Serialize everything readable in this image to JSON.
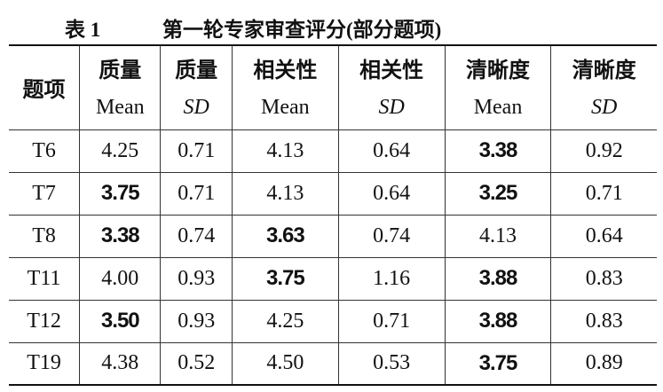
{
  "caption": {
    "label": "表 1",
    "title": "第一轮专家审查评分(部分题项)"
  },
  "table": {
    "header": [
      {
        "name": "题项"
      },
      {
        "name": "质量",
        "stat": "Mean"
      },
      {
        "name": "质量",
        "stat": "SD"
      },
      {
        "name": "相关性",
        "stat": "Mean"
      },
      {
        "name": "相关性",
        "stat": "SD"
      },
      {
        "name": "清晰度",
        "stat": "Mean"
      },
      {
        "name": "清晰度",
        "stat": "SD"
      }
    ],
    "rows": [
      [
        "T6",
        "4.25",
        "0.71",
        "4.13",
        "0.64",
        "3.38",
        "0.92"
      ],
      [
        "T7",
        "3.75",
        "0.71",
        "4.13",
        "0.64",
        "3.25",
        "0.71"
      ],
      [
        "T8",
        "3.38",
        "0.74",
        "3.63",
        "0.74",
        "4.13",
        "0.64"
      ],
      [
        "T11",
        "4.00",
        "0.93",
        "3.75",
        "1.16",
        "3.88",
        "0.83"
      ],
      [
        "T12",
        "3.50",
        "0.93",
        "4.25",
        "0.71",
        "3.88",
        "0.83"
      ],
      [
        "T19",
        "4.38",
        "0.52",
        "4.50",
        "0.53",
        "3.75",
        "0.89"
      ]
    ],
    "bold": [
      [
        false,
        false,
        false,
        false,
        false,
        true,
        false
      ],
      [
        false,
        true,
        false,
        false,
        false,
        true,
        false
      ],
      [
        false,
        true,
        false,
        true,
        false,
        false,
        false
      ],
      [
        false,
        false,
        false,
        true,
        false,
        true,
        false
      ],
      [
        false,
        true,
        false,
        false,
        false,
        true,
        false
      ],
      [
        false,
        false,
        false,
        false,
        false,
        true,
        false
      ]
    ]
  }
}
